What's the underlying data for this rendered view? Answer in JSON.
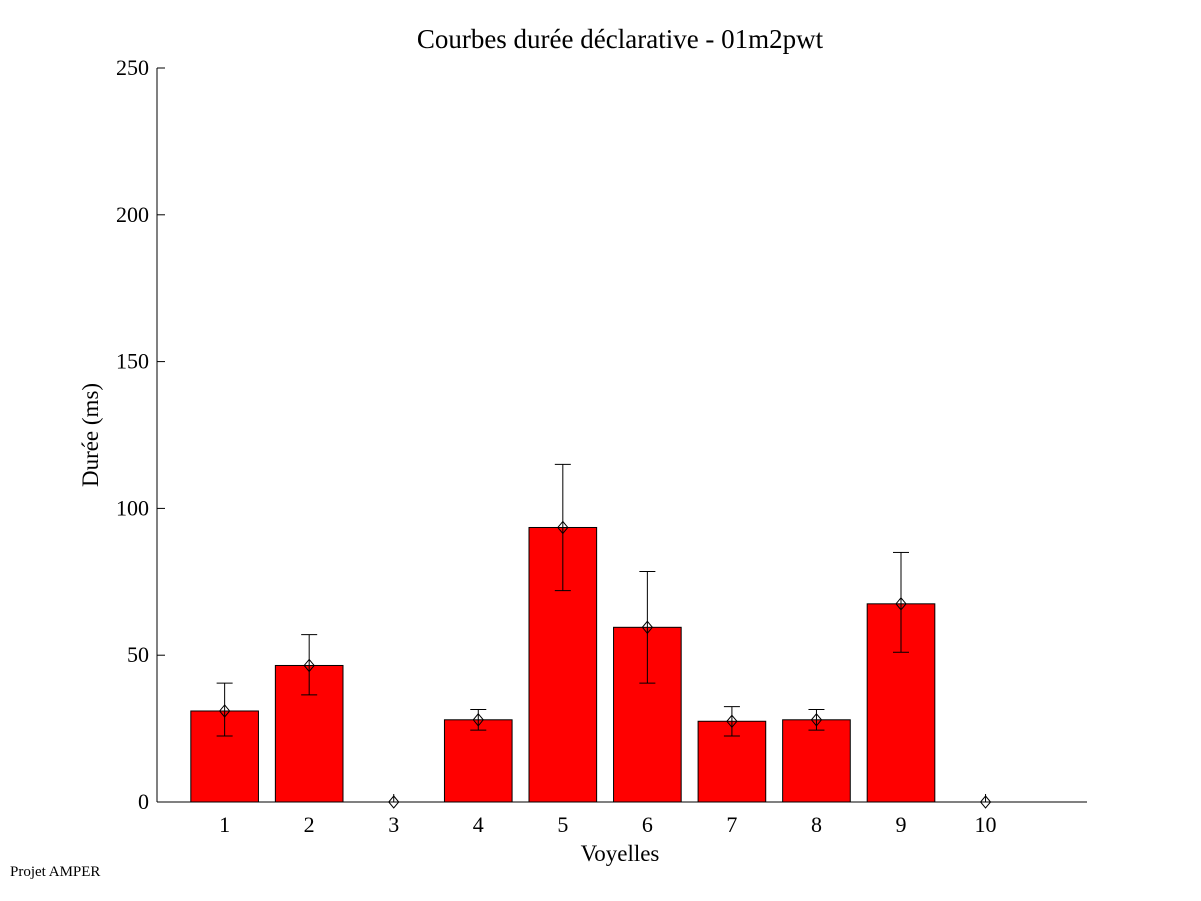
{
  "chart_data": {
    "type": "bar",
    "title": "Courbes durée déclarative - 01m2pwt",
    "xlabel": "Voyelles",
    "ylabel": "Durée (ms)",
    "categories": [
      "1",
      "2",
      "3",
      "4",
      "5",
      "6",
      "7",
      "8",
      "9",
      "10"
    ],
    "values": [
      31,
      46.5,
      0,
      28,
      93.5,
      59.5,
      27.5,
      28,
      67.5,
      0
    ],
    "error_low": [
      22.5,
      36.5,
      0,
      24.5,
      72,
      40.5,
      22.5,
      24.5,
      51,
      0
    ],
    "error_high": [
      40.5,
      57,
      0,
      31.5,
      115,
      78.5,
      32.5,
      31.5,
      85,
      0
    ],
    "yticks": [
      "0",
      "50",
      "100",
      "150",
      "200",
      "250"
    ],
    "ylim": [
      0,
      250
    ],
    "xlim": [
      0.2,
      11.2
    ],
    "grid": false,
    "legend": "none",
    "bar_color": "#ff0000",
    "marker": "diamond"
  },
  "footer": {
    "text": "Projet AMPER"
  }
}
